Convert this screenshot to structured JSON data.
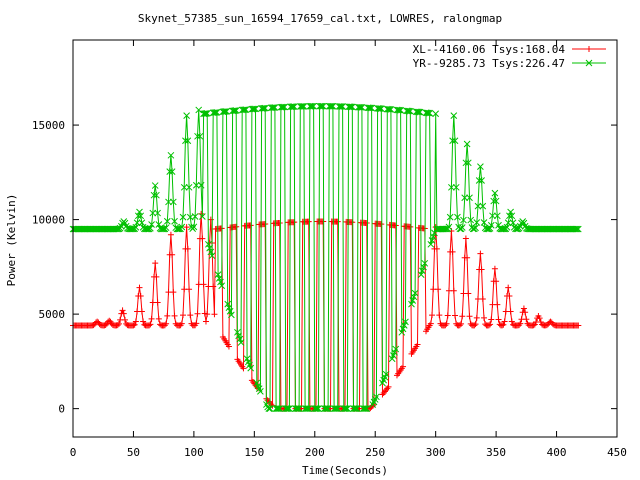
{
  "chart_data": {
    "type": "line",
    "title": "Skynet_57385_sun_16594_17659_cal.txt, LOWRES, ralongmap",
    "xlabel": "Time(Seconds)",
    "ylabel": "Power (Kelvin)",
    "xlim": [
      0,
      450
    ],
    "ylim": [
      -1500,
      19500
    ],
    "x_ticks": [
      0,
      50,
      100,
      150,
      200,
      250,
      300,
      350,
      400,
      450
    ],
    "y_ticks": [
      0,
      5000,
      10000,
      15000
    ],
    "grid": false,
    "legend_position": "top-right",
    "series": [
      {
        "name": "XL--4160.06 Tsys:168.04",
        "color": "#ff0000",
        "marker": "+",
        "baseline": 4400,
        "points_per_sec": 1,
        "xrange": [
          0,
          418
        ],
        "bumps": [
          {
            "center": 20,
            "height": 200,
            "width": 2
          },
          {
            "center": 30,
            "height": 250,
            "width": 2
          },
          {
            "center": 41,
            "height": 800,
            "width": 2
          },
          {
            "center": 55,
            "height": 2000,
            "width": 2
          },
          {
            "center": 68,
            "height": 3300,
            "width": 2
          },
          {
            "center": 81,
            "height": 4800,
            "width": 2
          },
          {
            "center": 94,
            "height": 5200,
            "width": 2
          },
          {
            "center": 106,
            "height": 5900,
            "width": 2
          },
          {
            "center": 114,
            "height": 5600,
            "width": 2
          },
          {
            "center": 300,
            "height": 5200,
            "width": 2
          },
          {
            "center": 313,
            "height": 5000,
            "width": 2
          },
          {
            "center": 325,
            "height": 4600,
            "width": 2
          },
          {
            "center": 337,
            "height": 3800,
            "width": 2
          },
          {
            "center": 349,
            "height": 3000,
            "width": 2
          },
          {
            "center": 360,
            "height": 2000,
            "width": 2
          },
          {
            "center": 373,
            "height": 900,
            "width": 2
          },
          {
            "center": 385,
            "height": 500,
            "width": 2
          },
          {
            "center": 395,
            "height": 200,
            "width": 2
          }
        ],
        "osc_range": [
          118,
          295
        ],
        "osc_high": 9900,
        "osc_low": 0,
        "osc_period": 12
      },
      {
        "name": "YR--9285.73 Tsys:226.47",
        "color": "#00c000",
        "marker": "x",
        "baseline": 9500,
        "points_per_sec": 1,
        "xrange": [
          0,
          418
        ],
        "bumps": [
          {
            "center": 42,
            "height": 400,
            "width": 2
          },
          {
            "center": 55,
            "height": 900,
            "width": 2
          },
          {
            "center": 68,
            "height": 2300,
            "width": 2
          },
          {
            "center": 81,
            "height": 3900,
            "width": 2
          },
          {
            "center": 94,
            "height": 6000,
            "width": 2
          },
          {
            "center": 104,
            "height": 6300,
            "width": 2
          },
          {
            "center": 315,
            "height": 6000,
            "width": 2
          },
          {
            "center": 326,
            "height": 4500,
            "width": 2
          },
          {
            "center": 337,
            "height": 3300,
            "width": 2
          },
          {
            "center": 349,
            "height": 1900,
            "width": 2
          },
          {
            "center": 362,
            "height": 900,
            "width": 2
          },
          {
            "center": 372,
            "height": 400,
            "width": 2
          }
        ],
        "osc_range": [
          108,
          300
        ],
        "osc_high": 16000,
        "osc_low": 0,
        "osc_period": 8
      }
    ]
  }
}
